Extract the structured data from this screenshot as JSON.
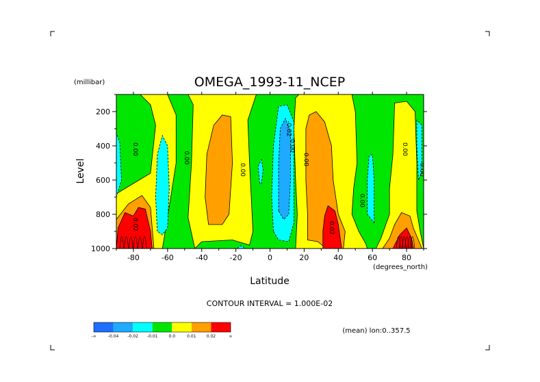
{
  "chart_data": {
    "type": "heatmap",
    "title": "OMEGA_1993-11_NCEP",
    "xlabel": "Latitude",
    "ylabel": "Level",
    "x_units": "(degrees_north)",
    "y_units": "(millibar)",
    "xlim": [
      -90,
      90
    ],
    "ylim": [
      1000,
      100
    ],
    "y_reversed": true,
    "x_ticks": [
      -80,
      -60,
      -40,
      -20,
      0,
      20,
      40,
      60,
      80
    ],
    "x_tick_labels": [
      "-80",
      "-60",
      "-40",
      "-20",
      "0",
      "20",
      "40",
      "60",
      "80"
    ],
    "y_ticks": [
      200,
      400,
      600,
      800,
      1000
    ],
    "y_tick_labels": [
      "200",
      "400",
      "600",
      "800",
      "1000"
    ],
    "contour_interval_text": "CONTOUR INTERVAL = 1.000E-02",
    "subtitle": "(mean) lon:0..357.5",
    "colorbar": {
      "bins": [
        {
          "label": "-0.04",
          "color": "#1e6eff"
        },
        {
          "label": "-0.02",
          "color": "#1eaaff"
        },
        {
          "label": "-0.01",
          "color": "#00ffff"
        },
        {
          "label": "0.0",
          "color": "#00e600"
        },
        {
          "label": "0.01",
          "color": "#ffff00"
        },
        {
          "label": "0.02",
          "color": "#ffa000"
        },
        {
          "label": "",
          "color": "#ff0000"
        }
      ],
      "extra_labels": [
        "-∞",
        "∞"
      ]
    },
    "background_color": "#00e600",
    "regions": [
      {
        "level": 0.005,
        "color": "#ffff00",
        "points": [
          [
            -90,
            1000
          ],
          [
            -90,
            680
          ],
          [
            -80,
            620
          ],
          [
            -70,
            560
          ],
          [
            -67,
            280
          ],
          [
            -70,
            160
          ],
          [
            -76,
            100
          ],
          [
            -60,
            100
          ],
          [
            -55,
            220
          ],
          [
            -55,
            500
          ],
          [
            -60,
            820
          ],
          [
            -63,
            1000
          ]
        ]
      },
      {
        "level": 0.015,
        "color": "#ffa000",
        "points": [
          [
            -90,
            1000
          ],
          [
            -90,
            830
          ],
          [
            -83,
            740
          ],
          [
            -75,
            690
          ],
          [
            -70,
            760
          ],
          [
            -68,
            1000
          ]
        ]
      },
      {
        "level": 0.025,
        "color": "#ff0000",
        "points": [
          [
            -90,
            1000
          ],
          [
            -89,
            880
          ],
          [
            -85,
            790
          ],
          [
            -80,
            810
          ],
          [
            -77,
            760
          ],
          [
            -73,
            770
          ],
          [
            -70,
            900
          ],
          [
            -69,
            1000
          ]
        ]
      },
      {
        "level": 0.005,
        "color": "#ffff00",
        "points": [
          [
            -44,
            1000
          ],
          [
            -48,
            820
          ],
          [
            -46,
            500
          ],
          [
            -45,
            160
          ],
          [
            -48,
            100
          ],
          [
            -8,
            100
          ],
          [
            -10,
            160
          ],
          [
            -13,
            250
          ],
          [
            -12,
            500
          ],
          [
            -10,
            900
          ],
          [
            -12,
            980
          ],
          [
            -22,
            950
          ],
          [
            -40,
            960
          ]
        ]
      },
      {
        "level": 0.015,
        "color": "#ffa000",
        "points": [
          [
            -36,
            860
          ],
          [
            -38,
            700
          ],
          [
            -37,
            450
          ],
          [
            -33,
            280
          ],
          [
            -28,
            220
          ],
          [
            -23,
            230
          ],
          [
            -22,
            500
          ],
          [
            -24,
            800
          ],
          [
            -28,
            860
          ]
        ]
      },
      {
        "level": 0.005,
        "color": "#ffff00",
        "points": [
          [
            15,
            1000
          ],
          [
            16,
            800
          ],
          [
            15,
            600
          ],
          [
            14,
            300
          ],
          [
            15,
            120
          ],
          [
            17,
            100
          ],
          [
            48,
            100
          ],
          [
            50,
            200
          ],
          [
            51,
            500
          ],
          [
            49,
            650
          ],
          [
            48,
            800
          ],
          [
            52,
            900
          ],
          [
            56,
            970
          ],
          [
            57,
            1000
          ]
        ]
      },
      {
        "level": 0.015,
        "color": "#ffa000",
        "points": [
          [
            22,
            950
          ],
          [
            22,
            800
          ],
          [
            21,
            600
          ],
          [
            21,
            300
          ],
          [
            23,
            220
          ],
          [
            27,
            200
          ],
          [
            32,
            260
          ],
          [
            36,
            400
          ],
          [
            37,
            600
          ],
          [
            40,
            800
          ],
          [
            44,
            900
          ],
          [
            43,
            1000
          ],
          [
            33,
            1000
          ],
          [
            28,
            960
          ]
        ]
      },
      {
        "level": 0.025,
        "color": "#ff0000",
        "points": [
          [
            31,
            1000
          ],
          [
            31,
            900
          ],
          [
            32,
            810
          ],
          [
            34,
            750
          ],
          [
            38,
            780
          ],
          [
            40,
            860
          ],
          [
            42,
            1000
          ]
        ]
      },
      {
        "level": 0.005,
        "color": "#ffff00",
        "points": [
          [
            62,
            1000
          ],
          [
            65,
            940
          ],
          [
            70,
            800
          ],
          [
            70,
            650
          ],
          [
            72,
            450
          ],
          [
            73,
            150
          ],
          [
            80,
            140
          ],
          [
            85,
            200
          ],
          [
            86,
            500
          ],
          [
            86,
            780
          ],
          [
            88,
            900
          ],
          [
            90,
            1000
          ]
        ]
      },
      {
        "level": 0.015,
        "color": "#ffa000",
        "points": [
          [
            66,
            1000
          ],
          [
            70,
            940
          ],
          [
            73,
            860
          ],
          [
            77,
            790
          ],
          [
            82,
            810
          ],
          [
            84,
            880
          ],
          [
            89,
            1000
          ]
        ]
      },
      {
        "level": 0.025,
        "color": "#ff0000",
        "points": [
          [
            72,
            1000
          ],
          [
            76,
            920
          ],
          [
            80,
            880
          ],
          [
            83,
            940
          ],
          [
            84,
            1000
          ]
        ]
      },
      {
        "level": -0.005,
        "color": "#00ffff",
        "points": [
          [
            -66,
            900
          ],
          [
            -67,
            700
          ],
          [
            -66,
            450
          ],
          [
            -63,
            340
          ],
          [
            -60,
            400
          ],
          [
            -59,
            650
          ],
          [
            -60,
            880
          ],
          [
            -63,
            920
          ]
        ]
      },
      {
        "level": -0.005,
        "color": "#00ffff",
        "points": [
          [
            -90,
            700
          ],
          [
            -91,
            500
          ],
          [
            -91,
            300
          ],
          [
            -88,
            380
          ],
          [
            -87,
            600
          ]
        ]
      },
      {
        "level": -0.005,
        "color": "#00ffff",
        "points": [
          [
            -6,
            620
          ],
          [
            -7,
            520
          ],
          [
            -5,
            480
          ],
          [
            -4,
            540
          ],
          [
            -5,
            620
          ]
        ]
      },
      {
        "level": -0.005,
        "color": "#00ffff",
        "points": [
          [
            2,
            900
          ],
          [
            1,
            700
          ],
          [
            2,
            400
          ],
          [
            5,
            170
          ],
          [
            10,
            160
          ],
          [
            14,
            260
          ],
          [
            14,
            600
          ],
          [
            14,
            850
          ],
          [
            11,
            960
          ],
          [
            5,
            950
          ]
        ]
      },
      {
        "level": -0.015,
        "color": "#1eaaff",
        "points": [
          [
            5,
            780
          ],
          [
            5,
            500
          ],
          [
            6,
            300
          ],
          [
            9,
            240
          ],
          [
            12,
            320
          ],
          [
            12,
            600
          ],
          [
            11,
            800
          ],
          [
            8,
            830
          ]
        ]
      },
      {
        "level": -0.005,
        "color": "#00ffff",
        "points": [
          [
            61,
            850
          ],
          [
            61,
            600
          ],
          [
            60,
            450
          ],
          [
            58,
            460
          ],
          [
            57,
            600
          ],
          [
            57,
            800
          ]
        ]
      },
      {
        "level": -0.005,
        "color": "#00ffff",
        "points": [
          [
            87,
            600
          ],
          [
            86,
            400
          ],
          [
            86,
            250
          ],
          [
            89,
            280
          ],
          [
            89,
            550
          ]
        ]
      },
      {
        "level": -0.005,
        "color": "#00ffff",
        "points": [
          [
            -19,
            1000
          ],
          [
            -18,
            985
          ],
          [
            -16,
            985
          ],
          [
            -15,
            1000
          ]
        ]
      }
    ],
    "contour_labels": [
      {
        "text": "0.00",
        "lat": -80,
        "level": 420
      },
      {
        "text": "0.00",
        "lat": -50,
        "level": 470
      },
      {
        "text": "0.00",
        "lat": -17,
        "level": 540
      },
      {
        "text": "0.00",
        "lat": 12,
        "level": 400
      },
      {
        "text": "0.00",
        "lat": 20,
        "level": 480
      },
      {
        "text": "0.00",
        "lat": 53,
        "level": 720
      },
      {
        "text": "0.00",
        "lat": 78,
        "level": 420
      },
      {
        "text": "0.00",
        "lat": 88,
        "level": 540
      },
      {
        "text": "0.02",
        "lat": 35,
        "level": 880
      },
      {
        "text": "0.02",
        "lat": -80,
        "level": 860
      },
      {
        "text": "-0.02",
        "lat": 10,
        "level": 300
      }
    ]
  }
}
